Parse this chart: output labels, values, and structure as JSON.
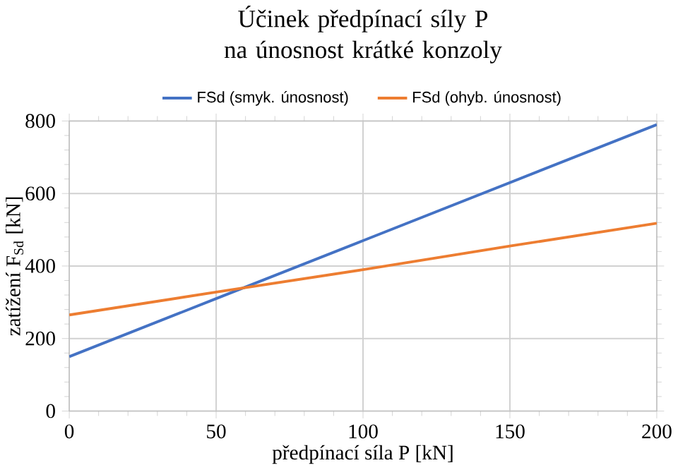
{
  "chart_data": {
    "type": "line",
    "title": "Účinek předpínací síly P na únosnost krátké konzoly",
    "xlabel": "předpínací síla P [kN]",
    "ylabel": "zatížení F$_{Sd}$ [kN]",
    "x": [
      0,
      50,
      100,
      150,
      200
    ],
    "series": [
      {
        "name": "FSd (smyk. únosnost)",
        "color": "#4472c4",
        "values": [
          150,
          310,
          470,
          630,
          790
        ]
      },
      {
        "name": "FSd (ohyb. únosnost)",
        "color": "#ed7d31",
        "values": [
          265,
          328,
          390,
          455,
          518
        ]
      }
    ],
    "xlim": [
      0,
      200
    ],
    "ylim": [
      0,
      800
    ],
    "xticks": [
      0,
      50,
      100,
      150,
      200
    ],
    "yticks": [
      0,
      200,
      400,
      600,
      800
    ],
    "grid": true,
    "legend": "top",
    "marker": "none",
    "line_style": "solid"
  }
}
